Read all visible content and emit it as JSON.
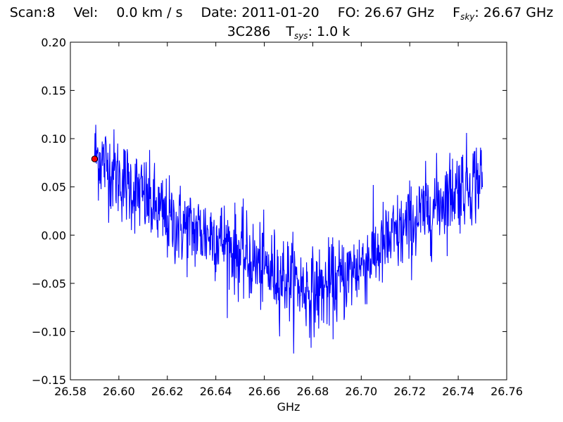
{
  "chart_data": {
    "type": "line",
    "title_line1": {
      "scan_label": "Scan:",
      "scan_value": "8",
      "vel_label": "Vel:",
      "vel_value": "0.0 km / s",
      "date_label": "Date:",
      "date_value": "2011-01-20",
      "fo_label": "FO:",
      "fo_value": "26.67 GHz",
      "fsky_label": "F",
      "fsky_sub": "sky",
      "fsky_value": ": 26.67 GHz"
    },
    "title_line2": {
      "source": "3C286",
      "tsys_label": "T",
      "tsys_sub": "sys",
      "tsys_value": ": 1.0 k"
    },
    "xlabel": "GHz",
    "ylabel": "",
    "xlim": [
      26.58,
      26.76
    ],
    "ylim": [
      -0.15,
      0.2
    ],
    "xticks": [
      "26.58",
      "26.60",
      "26.62",
      "26.64",
      "26.66",
      "26.68",
      "26.70",
      "26.72",
      "26.74",
      "26.76"
    ],
    "yticks": [
      "0.20",
      "0.15",
      "0.10",
      "0.05",
      "0.00",
      "−0.05",
      "−0.10",
      "−0.15"
    ],
    "grid": false,
    "series": [
      {
        "color": "#0000ff",
        "x_start": 26.59,
        "x_end": 26.75,
        "n_points": 1024,
        "noise_sigma": 0.022,
        "baseline_x": [
          26.59,
          26.6,
          26.61,
          26.62,
          26.63,
          26.64,
          26.65,
          26.66,
          26.67,
          26.68,
          26.69,
          26.7,
          26.71,
          26.72,
          26.73,
          26.74,
          26.75
        ],
        "baseline_y": [
          0.085,
          0.06,
          0.04,
          0.015,
          0.005,
          0.0,
          -0.02,
          -0.035,
          -0.045,
          -0.06,
          -0.05,
          -0.03,
          -0.01,
          0.01,
          0.03,
          0.05,
          0.06
        ]
      }
    ],
    "marker": {
      "x": 26.59,
      "y": 0.079,
      "fill": "#ff0000",
      "stroke": "#000000"
    }
  }
}
